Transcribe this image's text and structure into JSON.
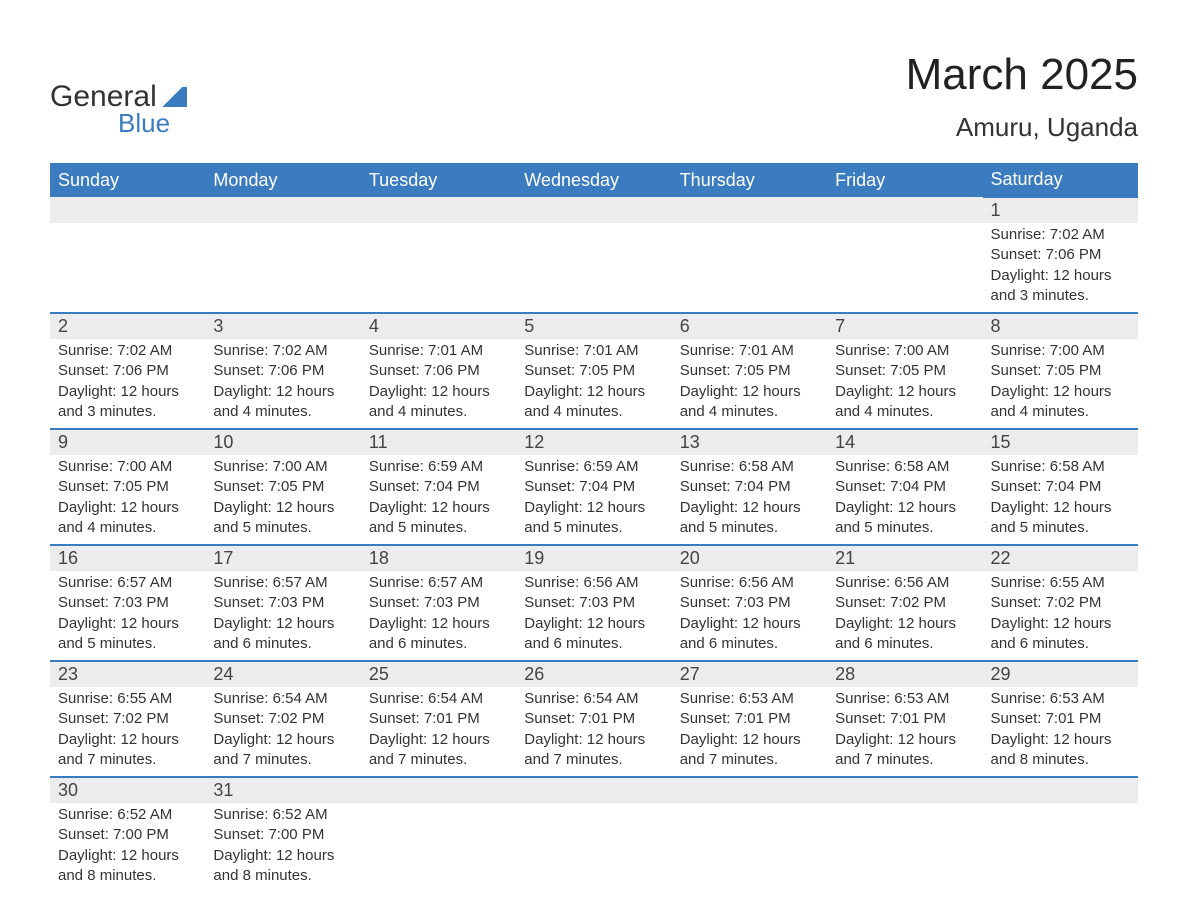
{
  "header": {
    "logo_general": "General",
    "logo_blue": "Blue",
    "month_title": "March 2025",
    "location": "Amuru, Uganda"
  },
  "colors": {
    "header_bg": "#3b7bbf",
    "header_text": "#ffffff",
    "daynum_bg": "#ececec",
    "border": "#3b7bbf",
    "text": "#333333"
  },
  "typography": {
    "month_title_fontsize": 44,
    "location_fontsize": 26,
    "dayheader_fontsize": 18,
    "daynum_fontsize": 18,
    "body_fontsize": 15
  },
  "calendar": {
    "day_headers": [
      "Sunday",
      "Monday",
      "Tuesday",
      "Wednesday",
      "Thursday",
      "Friday",
      "Saturday"
    ],
    "weeks": [
      [
        null,
        null,
        null,
        null,
        null,
        null,
        {
          "n": "1",
          "sr": "7:02 AM",
          "ss": "7:06 PM",
          "dl": "12 hours and 3 minutes."
        }
      ],
      [
        {
          "n": "2",
          "sr": "7:02 AM",
          "ss": "7:06 PM",
          "dl": "12 hours and 3 minutes."
        },
        {
          "n": "3",
          "sr": "7:02 AM",
          "ss": "7:06 PM",
          "dl": "12 hours and 4 minutes."
        },
        {
          "n": "4",
          "sr": "7:01 AM",
          "ss": "7:06 PM",
          "dl": "12 hours and 4 minutes."
        },
        {
          "n": "5",
          "sr": "7:01 AM",
          "ss": "7:05 PM",
          "dl": "12 hours and 4 minutes."
        },
        {
          "n": "6",
          "sr": "7:01 AM",
          "ss": "7:05 PM",
          "dl": "12 hours and 4 minutes."
        },
        {
          "n": "7",
          "sr": "7:00 AM",
          "ss": "7:05 PM",
          "dl": "12 hours and 4 minutes."
        },
        {
          "n": "8",
          "sr": "7:00 AM",
          "ss": "7:05 PM",
          "dl": "12 hours and 4 minutes."
        }
      ],
      [
        {
          "n": "9",
          "sr": "7:00 AM",
          "ss": "7:05 PM",
          "dl": "12 hours and 4 minutes."
        },
        {
          "n": "10",
          "sr": "7:00 AM",
          "ss": "7:05 PM",
          "dl": "12 hours and 5 minutes."
        },
        {
          "n": "11",
          "sr": "6:59 AM",
          "ss": "7:04 PM",
          "dl": "12 hours and 5 minutes."
        },
        {
          "n": "12",
          "sr": "6:59 AM",
          "ss": "7:04 PM",
          "dl": "12 hours and 5 minutes."
        },
        {
          "n": "13",
          "sr": "6:58 AM",
          "ss": "7:04 PM",
          "dl": "12 hours and 5 minutes."
        },
        {
          "n": "14",
          "sr": "6:58 AM",
          "ss": "7:04 PM",
          "dl": "12 hours and 5 minutes."
        },
        {
          "n": "15",
          "sr": "6:58 AM",
          "ss": "7:04 PM",
          "dl": "12 hours and 5 minutes."
        }
      ],
      [
        {
          "n": "16",
          "sr": "6:57 AM",
          "ss": "7:03 PM",
          "dl": "12 hours and 5 minutes."
        },
        {
          "n": "17",
          "sr": "6:57 AM",
          "ss": "7:03 PM",
          "dl": "12 hours and 6 minutes."
        },
        {
          "n": "18",
          "sr": "6:57 AM",
          "ss": "7:03 PM",
          "dl": "12 hours and 6 minutes."
        },
        {
          "n": "19",
          "sr": "6:56 AM",
          "ss": "7:03 PM",
          "dl": "12 hours and 6 minutes."
        },
        {
          "n": "20",
          "sr": "6:56 AM",
          "ss": "7:03 PM",
          "dl": "12 hours and 6 minutes."
        },
        {
          "n": "21",
          "sr": "6:56 AM",
          "ss": "7:02 PM",
          "dl": "12 hours and 6 minutes."
        },
        {
          "n": "22",
          "sr": "6:55 AM",
          "ss": "7:02 PM",
          "dl": "12 hours and 6 minutes."
        }
      ],
      [
        {
          "n": "23",
          "sr": "6:55 AM",
          "ss": "7:02 PM",
          "dl": "12 hours and 7 minutes."
        },
        {
          "n": "24",
          "sr": "6:54 AM",
          "ss": "7:02 PM",
          "dl": "12 hours and 7 minutes."
        },
        {
          "n": "25",
          "sr": "6:54 AM",
          "ss": "7:01 PM",
          "dl": "12 hours and 7 minutes."
        },
        {
          "n": "26",
          "sr": "6:54 AM",
          "ss": "7:01 PM",
          "dl": "12 hours and 7 minutes."
        },
        {
          "n": "27",
          "sr": "6:53 AM",
          "ss": "7:01 PM",
          "dl": "12 hours and 7 minutes."
        },
        {
          "n": "28",
          "sr": "6:53 AM",
          "ss": "7:01 PM",
          "dl": "12 hours and 7 minutes."
        },
        {
          "n": "29",
          "sr": "6:53 AM",
          "ss": "7:01 PM",
          "dl": "12 hours and 8 minutes."
        }
      ],
      [
        {
          "n": "30",
          "sr": "6:52 AM",
          "ss": "7:00 PM",
          "dl": "12 hours and 8 minutes."
        },
        {
          "n": "31",
          "sr": "6:52 AM",
          "ss": "7:00 PM",
          "dl": "12 hours and 8 minutes."
        },
        null,
        null,
        null,
        null,
        null
      ]
    ],
    "labels": {
      "sunrise_prefix": "Sunrise: ",
      "sunset_prefix": "Sunset: ",
      "daylight_prefix": "Daylight: "
    }
  }
}
